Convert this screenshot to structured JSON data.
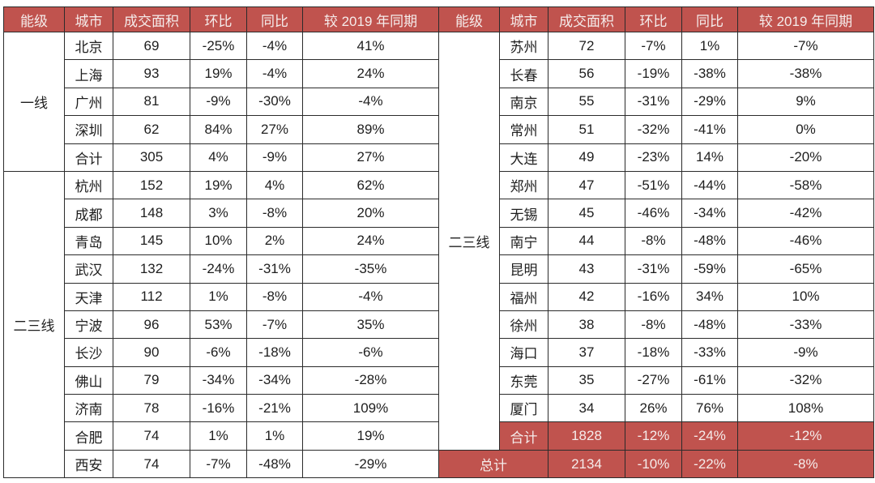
{
  "colors": {
    "accent": "#C0534E",
    "accent_text": "#F5ECEB",
    "border": "#2B2B2B",
    "body_text": "#1E1E1E",
    "background": "#FFFFFF"
  },
  "chart_data": {
    "type": "table",
    "columns": [
      "能级",
      "城市",
      "成交面积",
      "环比",
      "同比",
      "较 2019 年同期"
    ],
    "left_panel": {
      "groups": [
        {
          "tier": "一线",
          "rows": [
            [
              "北京",
              "69",
              "-25%",
              "-4%",
              "41%"
            ],
            [
              "上海",
              "93",
              "19%",
              "-4%",
              "24%"
            ],
            [
              "广州",
              "81",
              "-9%",
              "-30%",
              "-4%"
            ],
            [
              "深圳",
              "62",
              "84%",
              "27%",
              "89%"
            ],
            [
              "合计",
              "305",
              "4%",
              "-9%",
              "27%"
            ]
          ]
        },
        {
          "tier": "二三线",
          "rows": [
            [
              "杭州",
              "152",
              "19%",
              "4%",
              "62%"
            ],
            [
              "成都",
              "148",
              "3%",
              "-8%",
              "20%"
            ],
            [
              "青岛",
              "145",
              "10%",
              "2%",
              "24%"
            ],
            [
              "武汉",
              "132",
              "-24%",
              "-31%",
              "-35%"
            ],
            [
              "天津",
              "112",
              "1%",
              "-8%",
              "-4%"
            ],
            [
              "宁波",
              "96",
              "53%",
              "-7%",
              "35%"
            ],
            [
              "长沙",
              "90",
              "-6%",
              "-18%",
              "-6%"
            ],
            [
              "佛山",
              "79",
              "-34%",
              "-34%",
              "-28%"
            ],
            [
              "济南",
              "78",
              "-16%",
              "-21%",
              "109%"
            ],
            [
              "合肥",
              "74",
              "1%",
              "1%",
              "19%"
            ],
            [
              "西安",
              "74",
              "-7%",
              "-48%",
              "-29%"
            ]
          ]
        }
      ]
    },
    "right_panel": {
      "groups": [
        {
          "tier": "二三线",
          "rows": [
            [
              "苏州",
              "72",
              "-7%",
              "1%",
              "-7%"
            ],
            [
              "长春",
              "56",
              "-19%",
              "-38%",
              "-38%"
            ],
            [
              "南京",
              "55",
              "-31%",
              "-29%",
              "9%"
            ],
            [
              "常州",
              "51",
              "-32%",
              "-41%",
              "0%"
            ],
            [
              "大连",
              "49",
              "-23%",
              "14%",
              "-20%"
            ],
            [
              "郑州",
              "47",
              "-51%",
              "-44%",
              "-58%"
            ],
            [
              "无锡",
              "45",
              "-46%",
              "-34%",
              "-42%"
            ],
            [
              "南宁",
              "44",
              "-8%",
              "-48%",
              "-46%"
            ],
            [
              "昆明",
              "43",
              "-31%",
              "-59%",
              "-65%"
            ],
            [
              "福州",
              "42",
              "-16%",
              "34%",
              "10%"
            ],
            [
              "徐州",
              "38",
              "-8%",
              "-48%",
              "-33%"
            ],
            [
              "海口",
              "37",
              "-18%",
              "-33%",
              "-9%"
            ],
            [
              "东莞",
              "35",
              "-27%",
              "-61%",
              "-32%"
            ],
            [
              "厦门",
              "34",
              "26%",
              "76%",
              "108%"
            ]
          ],
          "subtotal": [
            "合计",
            "1828",
            "-12%",
            "-24%",
            "-12%"
          ]
        }
      ],
      "grand_total": [
        "总计",
        "2134",
        "-10%",
        "-22%",
        "-8%"
      ]
    }
  }
}
